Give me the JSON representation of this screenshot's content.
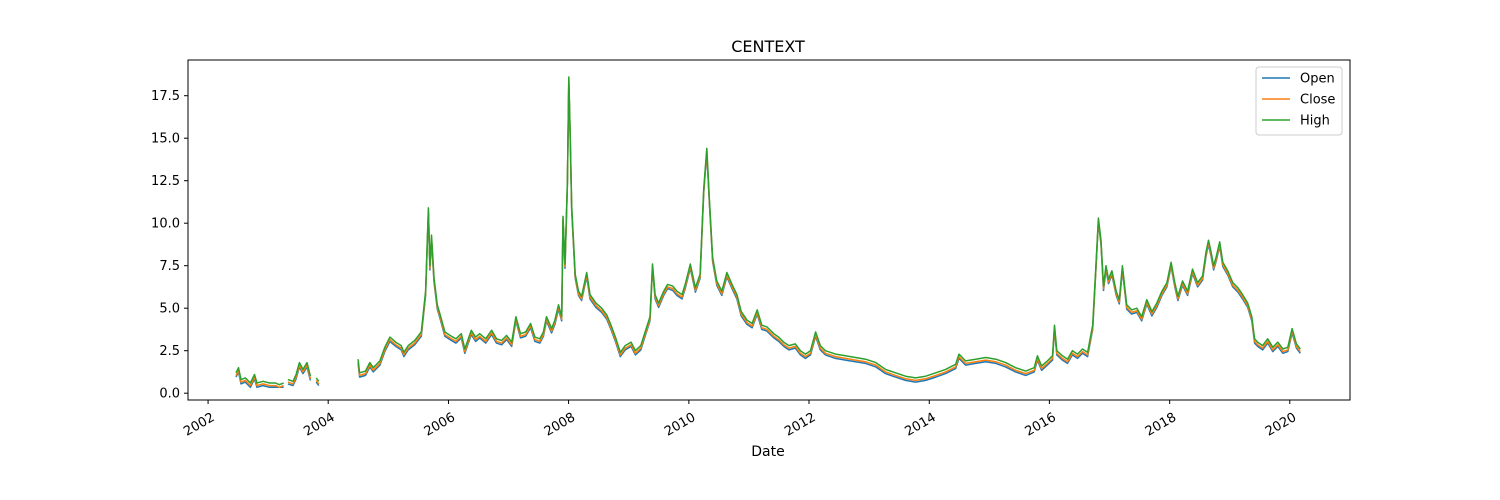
{
  "chart_data": {
    "type": "line",
    "title": "CENTEXT",
    "xlabel": "Date",
    "ylabel": "",
    "xlim": [
      "2001-09-01",
      "2021-01-01"
    ],
    "ylim": [
      -0.4,
      19.6
    ],
    "x_ticks": [
      "2002",
      "2004",
      "2006",
      "2008",
      "2010",
      "2012",
      "2014",
      "2016",
      "2018",
      "2020"
    ],
    "y_ticks": [
      0.0,
      2.5,
      5.0,
      7.5,
      10.0,
      12.5,
      15.0,
      17.5
    ],
    "y_tick_labels": [
      "0.0",
      "2.5",
      "5.0",
      "7.5",
      "10.0",
      "12.5",
      "15.0",
      "17.5"
    ],
    "legend": {
      "position": "top-right"
    },
    "grid": false,
    "colors": {
      "Open": "#1f77b4",
      "Close": "#ff7f0e",
      "High": "#2ca02c"
    },
    "high_points": [
      [
        "2002-06-20",
        1.2
      ],
      [
        "2002-07-05",
        1.5
      ],
      [
        "2002-07-20",
        0.8
      ],
      [
        "2002-08-15",
        0.9
      ],
      [
        "2002-09-15",
        0.6
      ],
      [
        "2002-10-10",
        1.1
      ],
      [
        "2002-10-25",
        0.6
      ],
      [
        "2002-12-01",
        0.7
      ],
      [
        "2003-01-10",
        0.6
      ],
      [
        "2003-02-15",
        0.6
      ],
      [
        "2003-03-10",
        0.5
      ],
      [
        "2003-04-05",
        0.6
      ],
      null,
      [
        "2003-05-01",
        0.8
      ],
      [
        "2003-06-01",
        0.7
      ],
      [
        "2003-06-20",
        1.1
      ],
      [
        "2003-07-10",
        1.8
      ],
      [
        "2003-08-01",
        1.4
      ],
      [
        "2003-08-25",
        1.8
      ],
      [
        "2003-09-15",
        1.0
      ],
      null,
      [
        "2003-10-20",
        0.9
      ],
      [
        "2003-11-05",
        0.7
      ],
      null,
      [
        "2004-07-01",
        2.0
      ],
      [
        "2004-07-10",
        1.2
      ],
      [
        "2004-08-15",
        1.3
      ],
      [
        "2004-09-10",
        1.8
      ],
      [
        "2004-10-01",
        1.5
      ],
      [
        "2004-11-10",
        1.9
      ],
      [
        "2004-12-10",
        2.7
      ],
      [
        "2005-01-10",
        3.3
      ],
      [
        "2005-02-15",
        3.0
      ],
      [
        "2005-03-20",
        2.8
      ],
      [
        "2005-04-05",
        2.4
      ],
      [
        "2005-05-01",
        2.8
      ],
      [
        "2005-06-10",
        3.1
      ],
      [
        "2005-07-20",
        3.6
      ],
      [
        "2005-08-15",
        6.0
      ],
      [
        "2005-09-01",
        10.9
      ],
      [
        "2005-09-10",
        7.5
      ],
      [
        "2005-09-20",
        9.3
      ],
      [
        "2005-10-05",
        6.8
      ],
      [
        "2005-10-25",
        5.2
      ],
      [
        "2005-11-15",
        4.5
      ],
      [
        "2005-12-10",
        3.6
      ],
      [
        "2006-01-10",
        3.4
      ],
      [
        "2006-02-15",
        3.2
      ],
      [
        "2006-03-20",
        3.5
      ],
      [
        "2006-04-10",
        2.6
      ],
      [
        "2006-05-20",
        3.7
      ],
      [
        "2006-06-15",
        3.3
      ],
      [
        "2006-07-10",
        3.5
      ],
      [
        "2006-08-15",
        3.2
      ],
      [
        "2006-09-20",
        3.7
      ],
      [
        "2006-10-20",
        3.2
      ],
      [
        "2006-11-20",
        3.1
      ],
      [
        "2006-12-20",
        3.4
      ],
      [
        "2007-01-20",
        3.0
      ],
      [
        "2007-02-15",
        4.5
      ],
      [
        "2007-03-15",
        3.5
      ],
      [
        "2007-04-15",
        3.6
      ],
      [
        "2007-05-15",
        4.1
      ],
      [
        "2007-06-10",
        3.3
      ],
      [
        "2007-07-10",
        3.2
      ],
      [
        "2007-08-01",
        3.6
      ],
      [
        "2007-08-20",
        4.5
      ],
      [
        "2007-09-20",
        3.8
      ],
      [
        "2007-10-10",
        4.3
      ],
      [
        "2007-11-01",
        5.2
      ],
      [
        "2007-11-20",
        4.5
      ],
      [
        "2007-11-28",
        10.4
      ],
      [
        "2007-12-10",
        7.6
      ],
      [
        "2007-12-25",
        12.5
      ],
      [
        "2008-01-02",
        18.6
      ],
      [
        "2008-01-10",
        15.5
      ],
      [
        "2008-01-20",
        11.0
      ],
      [
        "2008-02-10",
        7.0
      ],
      [
        "2008-03-01",
        6.0
      ],
      [
        "2008-03-20",
        5.7
      ],
      [
        "2008-04-20",
        7.1
      ],
      [
        "2008-05-10",
        5.8
      ],
      [
        "2008-06-15",
        5.3
      ],
      [
        "2008-07-20",
        5.0
      ],
      [
        "2008-08-20",
        4.6
      ],
      [
        "2008-09-15",
        4.0
      ],
      [
        "2008-10-15",
        3.2
      ],
      [
        "2008-11-10",
        2.4
      ],
      [
        "2008-12-10",
        2.8
      ],
      [
        "2009-01-15",
        3.0
      ],
      [
        "2009-02-10",
        2.5
      ],
      [
        "2009-03-15",
        2.8
      ],
      [
        "2009-04-10",
        3.6
      ],
      [
        "2009-05-10",
        4.5
      ],
      [
        "2009-05-25",
        7.6
      ],
      [
        "2009-06-10",
        5.8
      ],
      [
        "2009-07-01",
        5.3
      ],
      [
        "2009-08-01",
        6.0
      ],
      [
        "2009-08-25",
        6.4
      ],
      [
        "2009-09-25",
        6.3
      ],
      [
        "2009-10-20",
        6.0
      ],
      [
        "2009-11-20",
        5.8
      ],
      [
        "2009-12-10",
        6.4
      ],
      [
        "2010-01-10",
        7.6
      ],
      [
        "2010-02-10",
        6.2
      ],
      [
        "2010-03-10",
        7.0
      ],
      [
        "2010-04-01",
        12.0
      ],
      [
        "2010-04-20",
        14.4
      ],
      [
        "2010-05-05",
        11.5
      ],
      [
        "2010-05-25",
        8.0
      ],
      [
        "2010-06-20",
        6.6
      ],
      [
        "2010-07-20",
        6.0
      ],
      [
        "2010-08-20",
        7.1
      ],
      [
        "2010-09-20",
        6.4
      ],
      [
        "2010-10-20",
        5.8
      ],
      [
        "2010-11-15",
        4.8
      ],
      [
        "2010-12-20",
        4.3
      ],
      [
        "2011-01-20",
        4.1
      ],
      [
        "2011-02-20",
        4.9
      ],
      [
        "2011-03-20",
        4.0
      ],
      [
        "2011-04-20",
        3.9
      ],
      [
        "2011-06-01",
        3.5
      ],
      [
        "2011-07-01",
        3.3
      ],
      [
        "2011-08-01",
        3.0
      ],
      [
        "2011-09-01",
        2.8
      ],
      [
        "2011-10-10",
        2.9
      ],
      [
        "2011-11-10",
        2.5
      ],
      [
        "2011-12-10",
        2.3
      ],
      [
        "2012-01-10",
        2.5
      ],
      [
        "2012-02-10",
        3.6
      ],
      [
        "2012-03-10",
        2.8
      ],
      [
        "2012-04-10",
        2.5
      ],
      [
        "2012-06-10",
        2.3
      ],
      [
        "2012-08-10",
        2.2
      ],
      [
        "2012-10-10",
        2.1
      ],
      [
        "2012-12-10",
        2.0
      ],
      [
        "2013-02-10",
        1.8
      ],
      [
        "2013-04-10",
        1.4
      ],
      [
        "2013-06-10",
        1.2
      ],
      [
        "2013-08-10",
        1.0
      ],
      [
        "2013-10-10",
        0.9
      ],
      [
        "2013-12-10",
        1.0
      ],
      [
        "2014-02-10",
        1.2
      ],
      [
        "2014-04-10",
        1.4
      ],
      [
        "2014-06-10",
        1.7
      ],
      [
        "2014-07-01",
        2.3
      ],
      [
        "2014-08-10",
        1.9
      ],
      [
        "2014-10-10",
        2.0
      ],
      [
        "2014-12-10",
        2.1
      ],
      [
        "2015-02-10",
        2.0
      ],
      [
        "2015-04-10",
        1.8
      ],
      [
        "2015-06-10",
        1.5
      ],
      [
        "2015-08-10",
        1.3
      ],
      [
        "2015-10-01",
        1.5
      ],
      [
        "2015-10-20",
        2.2
      ],
      [
        "2015-11-15",
        1.6
      ],
      [
        "2015-12-20",
        1.9
      ],
      [
        "2016-01-20",
        2.2
      ],
      [
        "2016-02-01",
        4.0
      ],
      [
        "2016-02-15",
        2.5
      ],
      [
        "2016-03-20",
        2.2
      ],
      [
        "2016-04-20",
        2.0
      ],
      [
        "2016-05-20",
        2.5
      ],
      [
        "2016-06-20",
        2.3
      ],
      [
        "2016-07-20",
        2.6
      ],
      [
        "2016-08-20",
        2.4
      ],
      [
        "2016-09-20",
        4.0
      ],
      [
        "2016-10-10",
        7.5
      ],
      [
        "2016-10-25",
        10.3
      ],
      [
        "2016-11-10",
        9.0
      ],
      [
        "2016-11-25",
        6.3
      ],
      [
        "2016-12-10",
        7.5
      ],
      [
        "2016-12-25",
        6.7
      ],
      [
        "2017-01-15",
        7.2
      ],
      [
        "2017-02-10",
        6.0
      ],
      [
        "2017-03-01",
        5.5
      ],
      [
        "2017-03-20",
        7.5
      ],
      [
        "2017-04-15",
        5.2
      ],
      [
        "2017-05-15",
        4.9
      ],
      [
        "2017-06-15",
        5.0
      ],
      [
        "2017-07-15",
        4.5
      ],
      [
        "2017-08-15",
        5.5
      ],
      [
        "2017-09-15",
        4.8
      ],
      [
        "2017-10-15",
        5.3
      ],
      [
        "2017-11-15",
        6.0
      ],
      [
        "2017-12-15",
        6.5
      ],
      [
        "2018-01-10",
        7.7
      ],
      [
        "2018-02-01",
        6.5
      ],
      [
        "2018-02-20",
        5.7
      ],
      [
        "2018-03-20",
        6.6
      ],
      [
        "2018-04-20",
        6.0
      ],
      [
        "2018-05-20",
        7.3
      ],
      [
        "2018-06-20",
        6.5
      ],
      [
        "2018-07-20",
        6.9
      ],
      [
        "2018-08-10",
        8.3
      ],
      [
        "2018-08-25",
        9.0
      ],
      [
        "2018-09-10",
        8.3
      ],
      [
        "2018-09-25",
        7.5
      ],
      [
        "2018-10-10",
        8.0
      ],
      [
        "2018-11-01",
        8.9
      ],
      [
        "2018-11-20",
        7.7
      ],
      [
        "2018-12-20",
        7.2
      ],
      [
        "2019-01-20",
        6.5
      ],
      [
        "2019-02-20",
        6.2
      ],
      [
        "2019-03-20",
        5.8
      ],
      [
        "2019-04-20",
        5.3
      ],
      [
        "2019-05-15",
        4.5
      ],
      [
        "2019-06-01",
        3.2
      ],
      [
        "2019-06-20",
        3.0
      ],
      [
        "2019-07-20",
        2.8
      ],
      [
        "2019-08-20",
        3.2
      ],
      [
        "2019-09-20",
        2.7
      ],
      [
        "2019-10-20",
        3.0
      ],
      [
        "2019-11-20",
        2.6
      ],
      [
        "2019-12-20",
        2.7
      ],
      [
        "2020-01-15",
        3.8
      ],
      [
        "2020-02-10",
        2.9
      ],
      [
        "2020-03-05",
        2.6
      ]
    ],
    "series": [
      {
        "name": "Open",
        "offset": -0.25
      },
      {
        "name": "Close",
        "offset": -0.15
      },
      {
        "name": "High",
        "offset": 0
      }
    ]
  }
}
